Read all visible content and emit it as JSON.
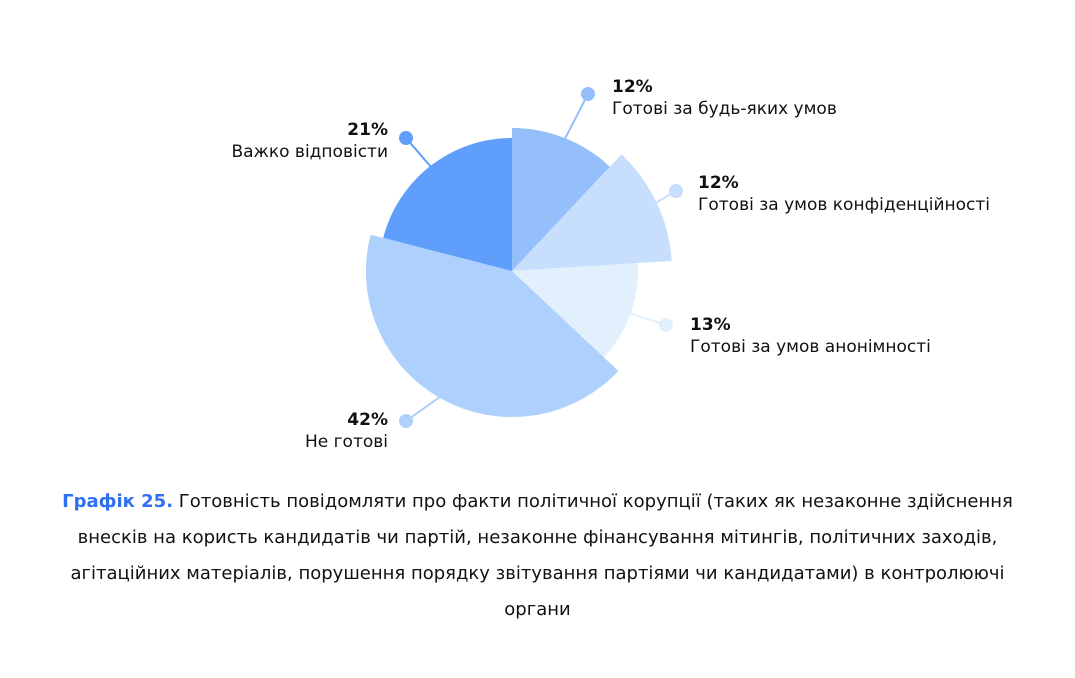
{
  "chart_data": {
    "type": "pie",
    "categories": [
      "Готові за будь-яких умов",
      "Готові за умов конфіденційності",
      "Готові за умов анонімності",
      "Не готові",
      "Важко відповісти"
    ],
    "values": [
      12,
      12,
      13,
      42,
      21
    ],
    "value_labels": [
      "12%",
      "12%",
      "13%",
      "42%",
      "21%"
    ],
    "colors": [
      "#94bffb",
      "#c7dffd",
      "#e2f0fe",
      "#aed0fc",
      "#5f9ffb"
    ]
  },
  "caption": {
    "label": "Графік 25.",
    "text": "Готовність повідомляти про факти політичної корупції (таких як незаконне здійснення внесків на користь кандидатів чи партій, незаконне фінансування мітингів, політичних заходів, агітаційних матеріалів, порушення порядку звітування партіями чи кандидатами) в контролюючі органи"
  }
}
